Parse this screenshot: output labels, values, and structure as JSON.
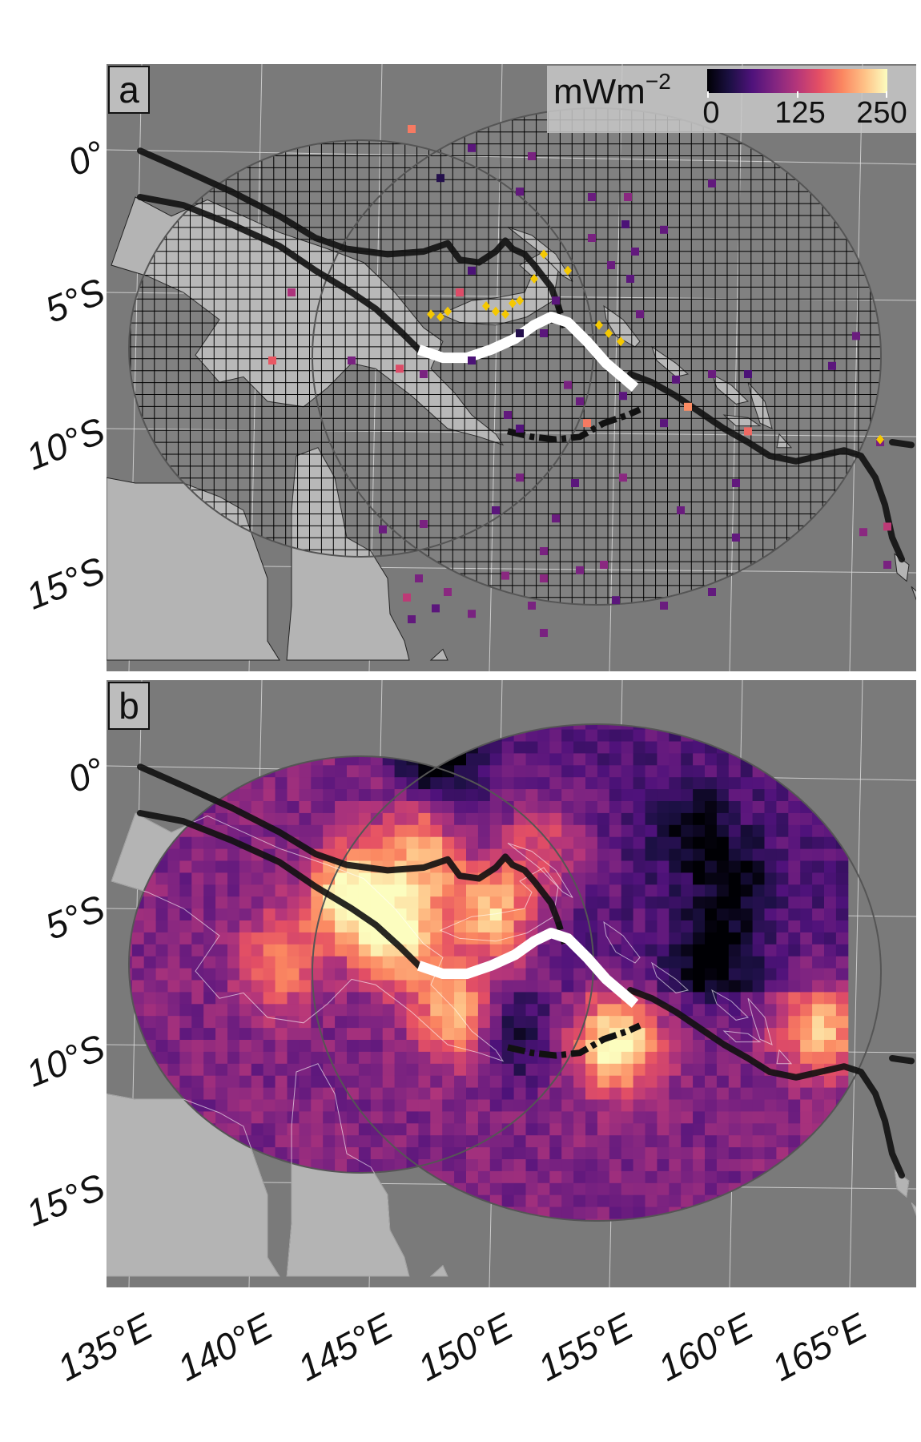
{
  "panels": [
    {
      "letter": "a",
      "kind": "observations"
    },
    {
      "letter": "b",
      "kind": "prediction"
    }
  ],
  "legend": {
    "unit_base": "mWm",
    "unit_exp": "−2",
    "ticks": [
      "0",
      "125",
      "250"
    ],
    "range": [
      0,
      250
    ],
    "colormap": "magma"
  },
  "axes": {
    "lat_labels": [
      "0°",
      "5°S",
      "10°S",
      "15°S"
    ],
    "lon_labels": [
      "135°E",
      "140°E",
      "145°E",
      "150°E",
      "155°E",
      "160°E",
      "165°E"
    ]
  },
  "colors": {
    "ocean": "#7a7a7a",
    "land": "#b4b4b4",
    "boundary": "#111111",
    "highlight_segment": "#ffffff",
    "volcano": "#f5c800"
  },
  "map_data": {
    "type": "heat-flow map",
    "volcanoes_lonlat": [
      [
        147.3,
        -5.8
      ],
      [
        147.7,
        -5.9
      ],
      [
        148.0,
        -5.7
      ],
      [
        149.6,
        -5.5
      ],
      [
        150.0,
        -5.7
      ],
      [
        150.4,
        -5.8
      ],
      [
        150.7,
        -5.4
      ],
      [
        151.0,
        -5.3
      ],
      [
        151.6,
        -4.5
      ],
      [
        152.0,
        -3.6
      ],
      [
        153.0,
        -4.2
      ],
      [
        154.3,
        -6.2
      ],
      [
        154.7,
        -6.5
      ],
      [
        155.2,
        -6.8
      ],
      [
        166.0,
        -10.4
      ]
    ],
    "observations_lonlat_value": [
      [
        146.5,
        1.0,
        150
      ],
      [
        147.7,
        -0.8,
        5
      ],
      [
        149.0,
        0.3,
        40
      ],
      [
        151.5,
        0.0,
        60
      ],
      [
        151.0,
        -1.3,
        45
      ],
      [
        154.0,
        -1.5,
        50
      ],
      [
        155.5,
        -1.5,
        70
      ],
      [
        157.0,
        -2.7,
        45
      ],
      [
        159.0,
        -1.0,
        45
      ],
      [
        155.4,
        -2.5,
        30
      ],
      [
        155.8,
        -3.5,
        45
      ],
      [
        154.0,
        -3.0,
        60
      ],
      [
        154.8,
        -4.0,
        50
      ],
      [
        155.6,
        -4.5,
        40
      ],
      [
        149.0,
        -4.2,
        30
      ],
      [
        148.5,
        -5.0,
        120
      ],
      [
        141.5,
        -5.0,
        90
      ],
      [
        152.5,
        -5.3,
        40
      ],
      [
        156.0,
        -5.8,
        50
      ],
      [
        152.0,
        -6.5,
        40
      ],
      [
        151.0,
        -6.5,
        5
      ],
      [
        140.7,
        -7.5,
        130
      ],
      [
        144.0,
        -7.5,
        60
      ],
      [
        146.0,
        -7.8,
        120
      ],
      [
        147.0,
        -8.0,
        60
      ],
      [
        149.0,
        -7.5,
        30
      ],
      [
        153.0,
        -8.4,
        60
      ],
      [
        157.5,
        -8.2,
        40
      ],
      [
        159.0,
        -8.0,
        50
      ],
      [
        160.5,
        -8.0,
        30
      ],
      [
        164.0,
        -7.7,
        40
      ],
      [
        165.0,
        -6.6,
        50
      ],
      [
        153.5,
        -9.0,
        50
      ],
      [
        155.3,
        -8.8,
        40
      ],
      [
        158.0,
        -9.2,
        160
      ],
      [
        150.5,
        -9.5,
        45
      ],
      [
        151.0,
        -10.0,
        35
      ],
      [
        153.8,
        -9.8,
        150
      ],
      [
        157.0,
        -9.8,
        40
      ],
      [
        160.5,
        -10.1,
        140
      ],
      [
        166.0,
        -10.5,
        60
      ],
      [
        151.0,
        -11.8,
        60
      ],
      [
        153.3,
        -12.0,
        40
      ],
      [
        155.3,
        -11.8,
        70
      ],
      [
        160.0,
        -12.0,
        45
      ],
      [
        157.7,
        -13.0,
        50
      ],
      [
        150.0,
        -13.0,
        40
      ],
      [
        152.5,
        -13.3,
        50
      ],
      [
        147.0,
        -13.5,
        60
      ],
      [
        145.3,
        -13.7,
        50
      ],
      [
        160.0,
        -14.0,
        45
      ],
      [
        152.0,
        -14.5,
        60
      ],
      [
        153.5,
        -15.2,
        60
      ],
      [
        154.5,
        -15.0,
        70
      ],
      [
        150.4,
        -15.4,
        70
      ],
      [
        152.0,
        -15.5,
        70
      ],
      [
        146.8,
        -15.5,
        60
      ],
      [
        148.0,
        -16.0,
        70
      ],
      [
        146.3,
        -16.2,
        100
      ],
      [
        147.5,
        -16.6,
        40
      ],
      [
        146.5,
        -17.0,
        45
      ],
      [
        149.0,
        -16.8,
        60
      ],
      [
        151.5,
        -16.5,
        60
      ],
      [
        152.0,
        -17.5,
        60
      ],
      [
        155.0,
        -16.3,
        40
      ],
      [
        157.0,
        -16.5,
        50
      ],
      [
        159.0,
        -16.0,
        45
      ],
      [
        165.3,
        -13.8,
        70
      ],
      [
        166.3,
        -13.6,
        100
      ],
      [
        166.3,
        -15.0,
        60
      ]
    ]
  }
}
